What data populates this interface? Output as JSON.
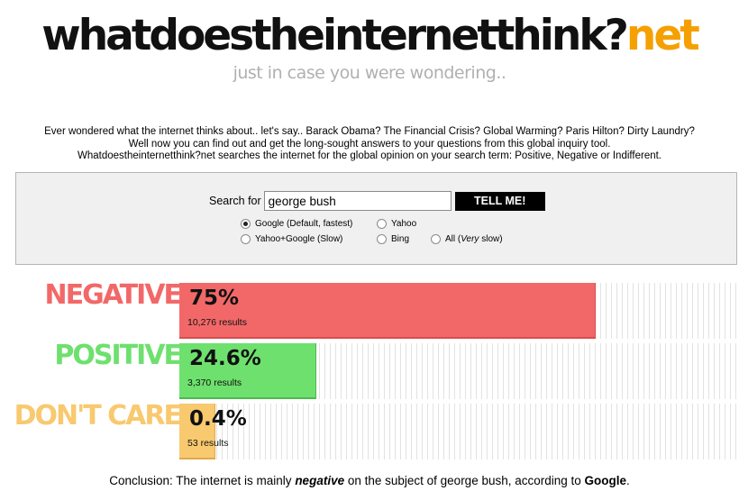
{
  "logo": {
    "main": "whatdoestheinternetthink?",
    "tld": "net",
    "accent_color": "#f5a000"
  },
  "tagline": "just in case you were wondering..",
  "intro": [
    "Ever wondered what the internet thinks about.. let's say.. Barack Obama? The Financial Crisis? Global Warming? Paris Hilton? Dirty Laundry?",
    "Well now you can find out and get the long-sought answers to your questions from this global inquiry tool.",
    "Whatdoestheinternetthink?net searches the internet for the global opinion on your search term: Positive, Negative or Indifferent."
  ],
  "search": {
    "label": "Search for",
    "value": "george bush",
    "button": "TELL ME!",
    "engines": [
      {
        "label": "Google (Default, fastest)",
        "checked": true
      },
      {
        "label": "Yahoo",
        "checked": false
      },
      {
        "label": "Yahoo+Google (Slow)",
        "checked": false
      },
      {
        "label": "Bing",
        "checked": false
      },
      {
        "label_prefix": "All (",
        "label_em": "Very",
        "label_suffix": " slow)",
        "checked": false
      }
    ]
  },
  "results": [
    {
      "label": "NEGATIVE",
      "percent": "75%",
      "fraction": 0.75,
      "count": "10,276 results",
      "color": "#f26868",
      "border": "#d84c4c"
    },
    {
      "label": "POSITIVE",
      "percent": "24.6%",
      "fraction": 0.246,
      "count": "3,370 results",
      "color": "#6ee06e",
      "border": "#4fb84f"
    },
    {
      "label": "DON'T CARE",
      "percent": "0.4%",
      "fraction": 0.004,
      "count": "53 results",
      "color": "#f8c96e",
      "border": "#e0a84a"
    }
  ],
  "conclusion": {
    "prefix": "Conclusion: The internet is mainly ",
    "sentiment": "negative",
    "middle": " on the subject of george bush, according to ",
    "engine": "Google",
    "suffix": "."
  }
}
